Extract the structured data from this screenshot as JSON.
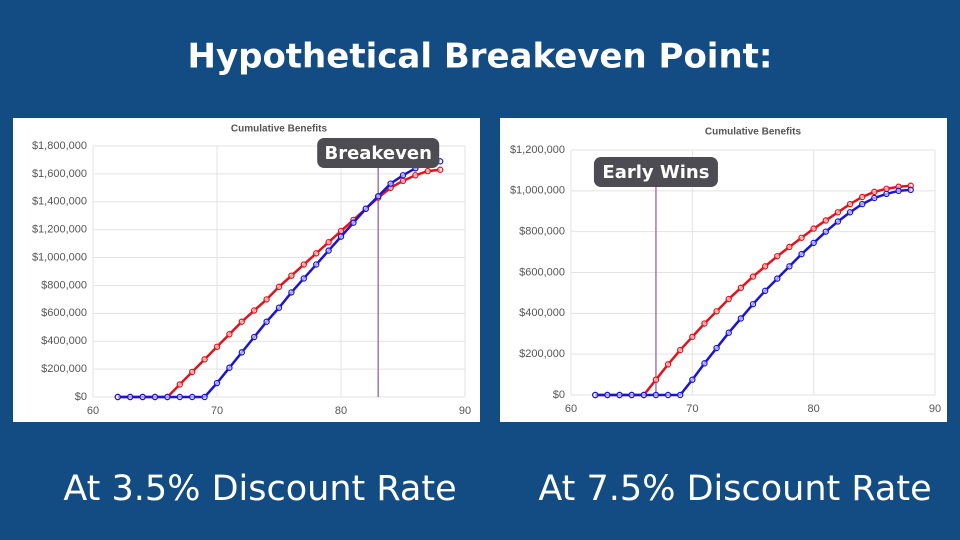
{
  "title": "Hypothetical Breakeven Point:",
  "captions": [
    "At 3.5% Discount Rate",
    "At 7.5% Discount Rate"
  ],
  "chart_data": [
    {
      "type": "line",
      "title": "Cumulative Benefits",
      "grid": true,
      "x": [
        62,
        63,
        64,
        65,
        66,
        67,
        68,
        69,
        70,
        71,
        72,
        73,
        74,
        75,
        76,
        77,
        78,
        79,
        80,
        81,
        82,
        83,
        84,
        85,
        86,
        87,
        88
      ],
      "xlim": [
        60,
        90
      ],
      "xticks": [
        60,
        70,
        80,
        90
      ],
      "ylim": [
        0,
        1800000
      ],
      "yticks": [
        {
          "value": 0,
          "label": "$0"
        },
        {
          "value": 200000,
          "label": "$200,000"
        },
        {
          "value": 400000,
          "label": "$400,000"
        },
        {
          "value": 600000,
          "label": "$600,000"
        },
        {
          "value": 800000,
          "label": "$800,000"
        },
        {
          "value": 1000000,
          "label": "$1,000,000"
        },
        {
          "value": 1200000,
          "label": "$1,200,000"
        },
        {
          "value": 1400000,
          "label": "$1,400,000"
        },
        {
          "value": 1600000,
          "label": "$1,600,000"
        },
        {
          "value": 1800000,
          "label": "$1,800,000"
        }
      ],
      "series": [
        {
          "color": "#e3121b",
          "values": [
            0,
            0,
            0,
            0,
            0,
            90000,
            180000,
            270000,
            360000,
            450000,
            540000,
            620000,
            700000,
            790000,
            870000,
            950000,
            1030000,
            1110000,
            1190000,
            1270000,
            1350000,
            1430000,
            1500000,
            1550000,
            1590000,
            1620000,
            1630000
          ]
        },
        {
          "color": "#1a14d6",
          "values": [
            0,
            0,
            0,
            0,
            0,
            0,
            0,
            0,
            100000,
            210000,
            320000,
            430000,
            540000,
            640000,
            750000,
            850000,
            950000,
            1050000,
            1150000,
            1250000,
            1350000,
            1440000,
            1530000,
            1590000,
            1640000,
            1690000,
            1690000
          ]
        }
      ],
      "annotations": [
        {
          "x": 83,
          "text": "Breakeven"
        }
      ]
    },
    {
      "type": "line",
      "title": "Cumulative Benefits",
      "grid": true,
      "x": [
        62,
        63,
        64,
        65,
        66,
        67,
        68,
        69,
        70,
        71,
        72,
        73,
        74,
        75,
        76,
        77,
        78,
        79,
        80,
        81,
        82,
        83,
        84,
        85,
        86,
        87,
        88
      ],
      "xlim": [
        60,
        90
      ],
      "xticks": [
        60,
        70,
        80,
        90
      ],
      "ylim": [
        0,
        1200000
      ],
      "yticks": [
        {
          "value": 0,
          "label": "$0"
        },
        {
          "value": 200000,
          "label": "$200,000"
        },
        {
          "value": 400000,
          "label": "$400,000"
        },
        {
          "value": 600000,
          "label": "$600,000"
        },
        {
          "value": 800000,
          "label": "$800,000"
        },
        {
          "value": 1000000,
          "label": "$1,000,000"
        },
        {
          "value": 1200000,
          "label": "$1,200,000"
        }
      ],
      "series": [
        {
          "color": "#e3121b",
          "values": [
            0,
            0,
            0,
            0,
            0,
            75000,
            150000,
            220000,
            285000,
            350000,
            410000,
            470000,
            525000,
            580000,
            630000,
            680000,
            725000,
            770000,
            815000,
            855000,
            895000,
            935000,
            970000,
            995000,
            1010000,
            1020000,
            1025000
          ]
        },
        {
          "color": "#1a14d6",
          "values": [
            0,
            0,
            0,
            0,
            0,
            0,
            0,
            0,
            75000,
            155000,
            230000,
            305000,
            375000,
            445000,
            510000,
            570000,
            630000,
            690000,
            745000,
            800000,
            850000,
            895000,
            935000,
            965000,
            985000,
            1000000,
            1005000
          ]
        }
      ],
      "annotations": [
        {
          "x": 67,
          "text": "Early Wins"
        }
      ]
    }
  ]
}
